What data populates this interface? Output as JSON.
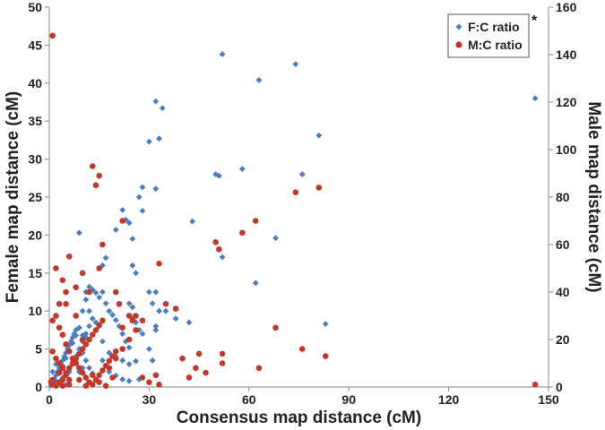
{
  "chart_data": {
    "type": "scatter",
    "xlabel": "Consensus map distance (cM)",
    "ylabel": "Female map distance (cM)",
    "y2label": "Male map distance (cM)",
    "xlim": [
      0,
      150
    ],
    "ylim": [
      0,
      50
    ],
    "y2lim": [
      0,
      160
    ],
    "xticks": [
      0,
      30,
      60,
      90,
      120,
      150
    ],
    "yticks": [
      0,
      5,
      10,
      15,
      20,
      25,
      30,
      35,
      40,
      45,
      50
    ],
    "y2ticks": [
      0,
      20,
      40,
      60,
      80,
      100,
      120,
      140,
      160
    ],
    "legend_position": "top-right",
    "legend_note": "*",
    "colors": {
      "fc": "#4a7ebf",
      "mc": "#c0392b"
    },
    "series": [
      {
        "name": "F:C ratio",
        "axis": "left",
        "marker": "diamond",
        "color": "#4a7ebf",
        "points": [
          [
            0.5,
            0.2
          ],
          [
            1,
            0.5
          ],
          [
            1.5,
            1
          ],
          [
            2,
            1.5
          ],
          [
            2.5,
            2
          ],
          [
            3,
            2.5
          ],
          [
            3.5,
            3
          ],
          [
            4,
            3.5
          ],
          [
            4.5,
            4
          ],
          [
            5,
            4.5
          ],
          [
            5.5,
            5
          ],
          [
            6,
            5.5
          ],
          [
            6.5,
            6
          ],
          [
            7,
            6.5
          ],
          [
            7.5,
            7
          ],
          [
            8,
            7.5
          ],
          [
            2,
            0.8
          ],
          [
            3,
            1.8
          ],
          [
            4,
            2.8
          ],
          [
            5,
            3.8
          ],
          [
            6,
            4.8
          ],
          [
            7,
            5.8
          ],
          [
            8,
            6.8
          ],
          [
            9,
            7.8
          ],
          [
            1,
            2
          ],
          [
            2,
            3
          ],
          [
            3,
            0.5
          ],
          [
            4,
            1.2
          ],
          [
            5,
            0.3
          ],
          [
            6,
            2
          ],
          [
            7,
            3
          ],
          [
            8,
            4
          ],
          [
            9,
            5
          ],
          [
            10,
            6
          ],
          [
            11,
            7
          ],
          [
            12,
            8
          ],
          [
            10,
            4.5
          ],
          [
            11,
            3.5
          ],
          [
            12,
            2.5
          ],
          [
            13,
            1.8
          ],
          [
            14,
            1
          ],
          [
            10,
            10
          ],
          [
            11,
            12.5
          ],
          [
            12,
            13.2
          ],
          [
            13,
            12.8
          ],
          [
            14,
            12.4
          ],
          [
            15,
            11.8
          ],
          [
            11,
            11.5
          ],
          [
            12,
            10
          ],
          [
            13,
            9
          ],
          [
            14,
            8.5
          ],
          [
            15,
            8
          ],
          [
            9,
            20.3
          ],
          [
            10,
            6.8
          ],
          [
            11,
            6.5
          ],
          [
            9,
            2
          ],
          [
            10,
            2.5
          ],
          [
            8,
            3.3
          ],
          [
            16,
            12.5
          ],
          [
            17,
            11
          ],
          [
            18,
            10
          ],
          [
            19,
            9.5
          ],
          [
            20,
            8.8
          ],
          [
            21,
            8
          ],
          [
            22,
            7
          ],
          [
            23,
            6
          ],
          [
            24,
            5.2
          ],
          [
            16,
            16
          ],
          [
            17,
            17
          ],
          [
            20,
            20.7
          ],
          [
            22,
            23.3
          ],
          [
            23,
            22
          ],
          [
            24,
            21.6
          ],
          [
            25,
            19.5
          ],
          [
            25,
            16
          ],
          [
            26,
            15
          ],
          [
            24,
            11
          ],
          [
            25,
            10.5
          ],
          [
            25,
            9
          ],
          [
            26,
            8.5
          ],
          [
            27,
            7.5
          ],
          [
            28,
            7
          ],
          [
            16,
            6
          ],
          [
            18,
            4.5
          ],
          [
            20,
            4
          ],
          [
            22,
            3.5
          ],
          [
            24,
            3
          ],
          [
            16,
            3.5
          ],
          [
            18,
            2
          ],
          [
            20,
            1.5
          ],
          [
            22,
            1
          ],
          [
            24,
            0.8
          ],
          [
            27,
            1
          ],
          [
            26,
            3.4
          ],
          [
            27,
            25
          ],
          [
            28,
            23.2
          ],
          [
            28,
            26.3
          ],
          [
            30,
            32.3
          ],
          [
            32,
            37.6
          ],
          [
            33,
            32.7
          ],
          [
            34,
            36.7
          ],
          [
            32,
            26.1
          ],
          [
            30,
            12.5
          ],
          [
            31,
            11
          ],
          [
            32,
            12.5
          ],
          [
            33,
            10
          ],
          [
            32,
            8
          ],
          [
            32,
            7.5
          ],
          [
            30,
            5
          ],
          [
            31,
            3.5
          ],
          [
            35,
            10
          ],
          [
            38,
            9
          ],
          [
            42,
            8.5
          ],
          [
            43,
            21.8
          ],
          [
            50,
            28
          ],
          [
            51,
            27.8
          ],
          [
            52,
            43.8
          ],
          [
            52,
            17.1
          ],
          [
            58,
            28.7
          ],
          [
            62,
            13.7
          ],
          [
            63,
            40.4
          ],
          [
            68,
            19.6
          ],
          [
            74,
            42.5
          ],
          [
            76,
            28
          ],
          [
            81,
            33.1
          ],
          [
            83,
            8.3
          ],
          [
            146,
            38
          ]
        ]
      },
      {
        "name": "M:C ratio",
        "axis": "right",
        "marker": "circle",
        "color": "#c0392b",
        "points": [
          [
            1,
            148
          ],
          [
            2,
            50
          ],
          [
            4,
            45
          ],
          [
            5,
            35
          ],
          [
            6,
            55
          ],
          [
            8,
            30
          ],
          [
            10,
            20
          ],
          [
            1,
            15
          ],
          [
            2,
            12
          ],
          [
            3,
            10
          ],
          [
            4,
            8
          ],
          [
            5,
            5
          ],
          [
            6,
            3
          ],
          [
            0.5,
            2
          ],
          [
            1,
            1
          ],
          [
            2,
            0.5
          ],
          [
            3,
            2
          ],
          [
            4,
            3
          ],
          [
            5,
            6
          ],
          [
            6,
            8
          ],
          [
            7,
            10
          ],
          [
            8,
            12
          ],
          [
            9,
            14
          ],
          [
            10,
            16
          ],
          [
            11,
            18
          ],
          [
            12,
            20
          ],
          [
            13,
            22
          ],
          [
            14,
            24
          ],
          [
            15,
            26
          ],
          [
            16,
            28
          ],
          [
            1,
            28
          ],
          [
            2,
            30
          ],
          [
            3,
            25
          ],
          [
            4,
            22
          ],
          [
            5,
            18
          ],
          [
            6,
            15
          ],
          [
            7,
            12
          ],
          [
            8,
            10
          ],
          [
            9,
            8
          ],
          [
            10,
            6
          ],
          [
            11,
            4
          ],
          [
            12,
            2
          ],
          [
            13,
            1
          ],
          [
            14,
            3
          ],
          [
            15,
            5
          ],
          [
            16,
            7
          ],
          [
            17,
            9
          ],
          [
            18,
            11
          ],
          [
            19,
            13
          ],
          [
            20,
            15
          ],
          [
            3,
            35
          ],
          [
            5,
            40
          ],
          [
            8,
            42
          ],
          [
            10,
            48
          ],
          [
            12,
            40
          ],
          [
            13,
            93
          ],
          [
            14,
            85
          ],
          [
            15,
            89
          ],
          [
            15,
            50
          ],
          [
            16,
            60
          ],
          [
            18,
            8
          ],
          [
            20,
            12
          ],
          [
            22,
            16
          ],
          [
            24,
            20
          ],
          [
            26,
            24
          ],
          [
            28,
            28
          ],
          [
            20,
            40
          ],
          [
            21,
            35
          ],
          [
            22,
            70
          ],
          [
            22,
            25
          ],
          [
            24,
            30
          ],
          [
            25,
            28
          ],
          [
            26,
            30
          ],
          [
            28,
            4
          ],
          [
            30,
            2
          ],
          [
            32,
            5
          ],
          [
            33,
            1
          ],
          [
            33,
            52
          ],
          [
            35,
            35
          ],
          [
            38,
            33
          ],
          [
            40,
            12
          ],
          [
            42,
            4
          ],
          [
            44,
            8
          ],
          [
            45,
            14
          ],
          [
            47,
            6
          ],
          [
            50,
            61
          ],
          [
            51,
            58
          ],
          [
            52,
            14
          ],
          [
            52,
            10
          ],
          [
            58,
            65
          ],
          [
            62,
            70
          ],
          [
            63,
            8
          ],
          [
            68,
            25
          ],
          [
            74,
            82
          ],
          [
            76,
            16
          ],
          [
            81,
            84
          ],
          [
            83,
            13
          ],
          [
            1,
            3
          ],
          [
            3,
            6
          ],
          [
            4,
            0.5
          ],
          [
            6,
            1
          ],
          [
            9,
            3
          ],
          [
            11,
            0.5
          ],
          [
            13,
            5
          ],
          [
            15,
            2
          ],
          [
            17,
            0.5
          ],
          [
            19,
            4
          ],
          [
            146,
            1
          ]
        ]
      }
    ]
  }
}
